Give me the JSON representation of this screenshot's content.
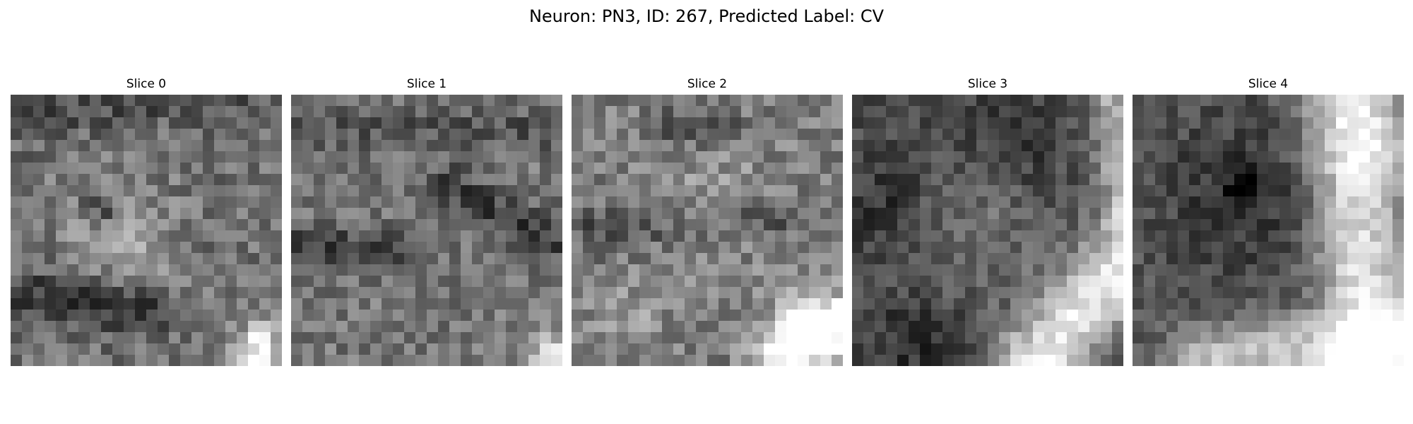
{
  "figure": {
    "title": "Neuron: PN3, ID: 267, Predicted Label: CV"
  },
  "colormap": "gray",
  "slices": [
    {
      "title": "Slice 0"
    },
    {
      "title": "Slice 1"
    },
    {
      "title": "Slice 2"
    },
    {
      "title": "Slice 3"
    },
    {
      "title": "Slice 4"
    }
  ]
}
